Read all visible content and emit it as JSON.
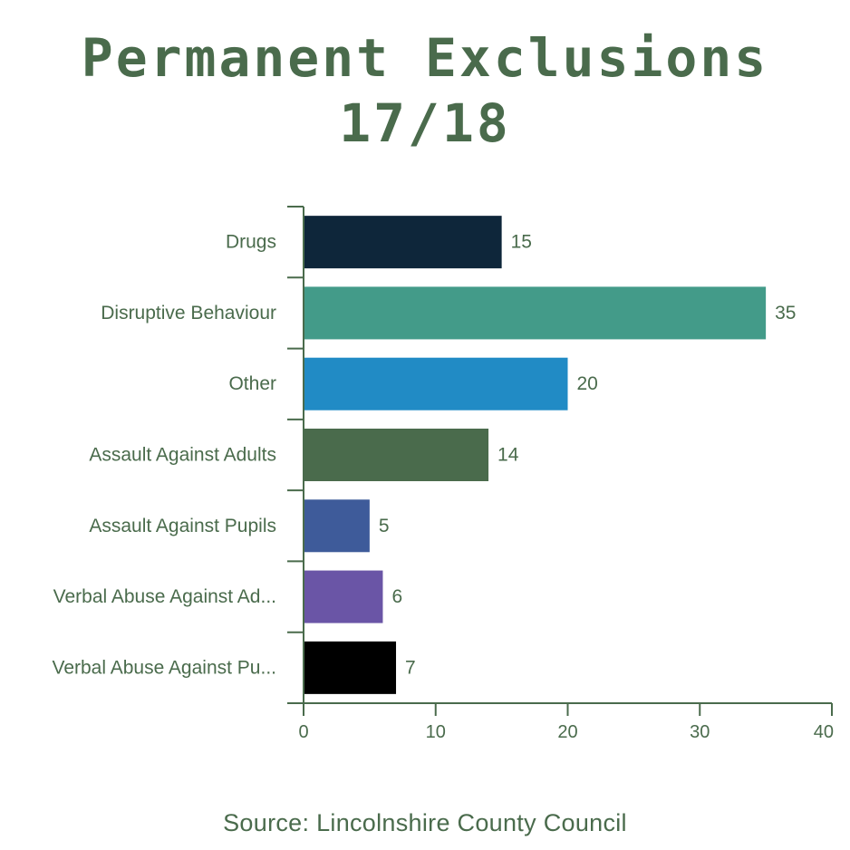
{
  "chart_data": {
    "type": "bar",
    "orientation": "horizontal",
    "title_lines": [
      "Permanent Exclusions",
      "17/18"
    ],
    "categories": [
      "Drugs",
      "Disruptive Behaviour",
      "Other",
      "Assault Against Adults",
      "Assault Against Pupils",
      "Verbal Abuse Against Ad...",
      "Verbal Abuse Against Pu..."
    ],
    "values": [
      15,
      35,
      20,
      14,
      5,
      6,
      7
    ],
    "bar_colors": [
      "#0e263a",
      "#439b89",
      "#218bc5",
      "#4a6b4c",
      "#3e5b9a",
      "#6a55a6",
      "#000000"
    ],
    "xlim": [
      0,
      40
    ],
    "xticks": [
      0,
      10,
      20,
      30,
      40
    ],
    "xlabel": "",
    "ylabel": "",
    "grid": false,
    "legend": "none",
    "data_labels": true
  },
  "source": "Source: Lincolnshire County Council",
  "colors": {
    "text": "#4a6b4c",
    "axis": "#4a6b4c",
    "background": "#ffffff"
  }
}
